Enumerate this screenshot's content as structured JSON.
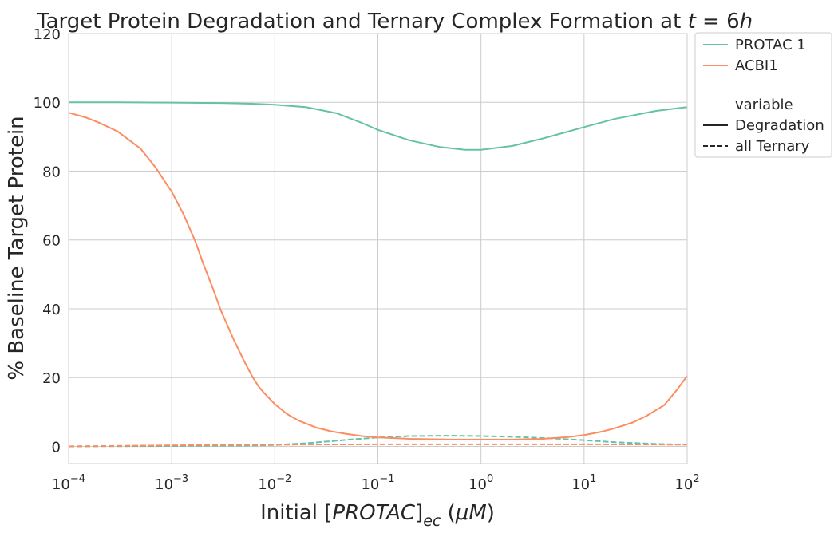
{
  "chart_data": {
    "type": "line",
    "title": {
      "prefix": "Target Protein Degradation and Ternary Complex Formation at ",
      "var": "t",
      "eq": " = 6",
      "unit": "h"
    },
    "xlabel": {
      "prefix": "Initial [",
      "var": "PROTAC",
      "close": "]",
      "sub": "ec",
      "space": " (",
      "unit": "μM",
      "end": ")"
    },
    "ylabel": "% Baseline Target Protein",
    "x_scale": "log",
    "xlim": [
      0.0001,
      100
    ],
    "ylim": [
      -5,
      120
    ],
    "x_ticks": [
      {
        "value": 0.0001,
        "base": "10",
        "exp": "−4"
      },
      {
        "value": 0.001,
        "base": "10",
        "exp": "−3"
      },
      {
        "value": 0.01,
        "base": "10",
        "exp": "−2"
      },
      {
        "value": 0.1,
        "base": "10",
        "exp": "−1"
      },
      {
        "value": 1,
        "base": "10",
        "exp": "0"
      },
      {
        "value": 10,
        "base": "10",
        "exp": "1"
      },
      {
        "value": 100,
        "base": "10",
        "exp": "2"
      }
    ],
    "y_ticks": [
      0,
      20,
      40,
      60,
      80,
      100,
      120
    ],
    "grid": true,
    "legend_position": "outside-top-right",
    "legend": {
      "hue_entries": [
        {
          "label": "PROTAC 1",
          "color": "#66c2a5"
        },
        {
          "label": "ACBI1",
          "color": "#fc8d62"
        }
      ],
      "style_title": "variable",
      "style_entries": [
        {
          "label": "Degradation",
          "dash": "solid"
        },
        {
          "label": "all Ternary",
          "dash": "dashed"
        }
      ]
    },
    "series": [
      {
        "name": "PROTAC 1",
        "variable": "Degradation",
        "color": "#66c2a5",
        "dash": "solid",
        "x": [
          0.0001,
          0.0003,
          0.001,
          0.003,
          0.006,
          0.01,
          0.02,
          0.04,
          0.07,
          0.1,
          0.2,
          0.4,
          0.7,
          1,
          2,
          4,
          7,
          10,
          20,
          50,
          100
        ],
        "y": [
          100,
          100,
          99.9,
          99.8,
          99.6,
          99.3,
          98.6,
          96.8,
          94.0,
          92.0,
          89.0,
          87.0,
          86.2,
          86.2,
          87.3,
          89.5,
          91.5,
          92.8,
          95.2,
          97.5,
          98.6
        ]
      },
      {
        "name": "ACBI1",
        "variable": "Degradation",
        "color": "#fc8d62",
        "dash": "solid",
        "x": [
          0.0001,
          0.00015,
          0.0002,
          0.0003,
          0.0005,
          0.0007,
          0.001,
          0.0013,
          0.0017,
          0.002,
          0.0025,
          0.003,
          0.004,
          0.005,
          0.006,
          0.007,
          0.008,
          0.01,
          0.013,
          0.017,
          0.025,
          0.035,
          0.05,
          0.07,
          0.1,
          0.2,
          0.5,
          1,
          2,
          4,
          7,
          10,
          15,
          20,
          30,
          40,
          60,
          80,
          100
        ],
        "y": [
          97,
          95.5,
          94,
          91.5,
          86.5,
          81,
          74,
          67.5,
          59.5,
          53.5,
          46,
          39.5,
          31,
          25,
          20.5,
          17.3,
          15.3,
          12.3,
          9.5,
          7.5,
          5.5,
          4.4,
          3.6,
          3.0,
          2.6,
          2.2,
          2.0,
          2.0,
          2.0,
          2.2,
          2.7,
          3.3,
          4.3,
          5.3,
          7.0,
          8.8,
          12.0,
          16.5,
          20.5
        ]
      },
      {
        "name": "PROTAC 1",
        "variable": "all Ternary",
        "color": "#66c2a5",
        "dash": "dashed",
        "x": [
          0.0001,
          0.001,
          0.005,
          0.01,
          0.02,
          0.05,
          0.1,
          0.2,
          0.5,
          1,
          2,
          5,
          10,
          20,
          50,
          100
        ],
        "y": [
          0,
          0.1,
          0.2,
          0.4,
          0.9,
          1.9,
          2.6,
          3.0,
          3.1,
          3.0,
          2.8,
          2.3,
          1.8,
          1.2,
          0.7,
          0.5
        ]
      },
      {
        "name": "ACBI1",
        "variable": "all Ternary",
        "color": "#fc8d62",
        "dash": "dashed",
        "x": [
          0.0001,
          0.001,
          0.01,
          0.1,
          1,
          10,
          100
        ],
        "y": [
          0,
          0.3,
          0.5,
          0.6,
          0.6,
          0.6,
          0.5
        ]
      }
    ]
  }
}
